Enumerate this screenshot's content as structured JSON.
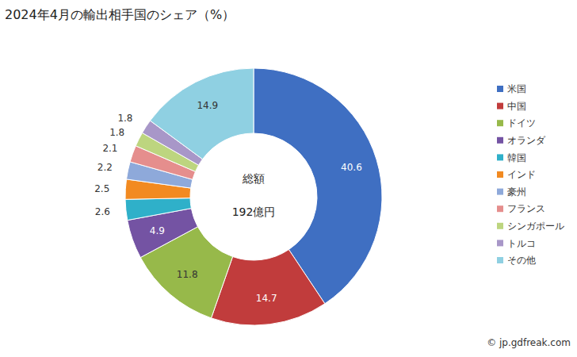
{
  "chart_data": {
    "type": "pie",
    "title": "2024年4月の輸出相手国のシェア（%）",
    "categories": [
      "米国",
      "中国",
      "ドイツ",
      "オランダ",
      "韓国",
      "インド",
      "豪州",
      "フランス",
      "シンガポール",
      "トルコ",
      "その他"
    ],
    "values": [
      40.6,
      14.7,
      11.8,
      4.9,
      2.6,
      2.5,
      2.2,
      2.1,
      1.8,
      1.8,
      14.9
    ],
    "colors": [
      "#3f6fc2",
      "#c13c3c",
      "#97b94a",
      "#7453a3",
      "#2fb0c9",
      "#f28a21",
      "#8ea9da",
      "#e58e8d",
      "#bdd57f",
      "#a897c8",
      "#8fd0e2"
    ],
    "data_labels": true,
    "legend": "right",
    "annotations": [
      "総額",
      "192億円",
      "© jp.gdfreak.com"
    ]
  }
}
